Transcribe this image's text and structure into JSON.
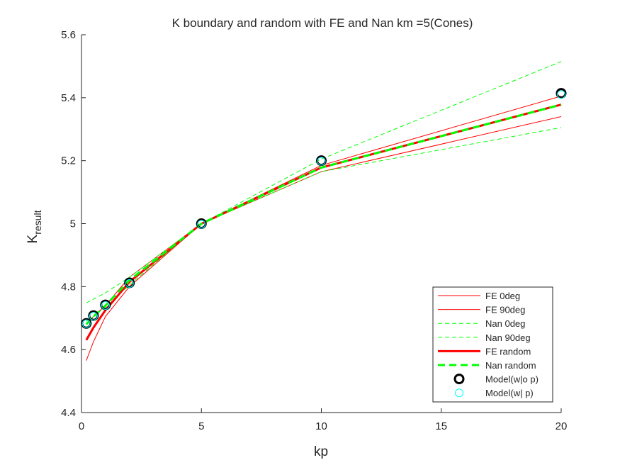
{
  "chart_data": {
    "type": "line",
    "title": "K boundary and random with FE and Nan km =5(Cones)",
    "xlabel": "kp",
    "ylabel_main": "K",
    "ylabel_sub": "result",
    "xlim": [
      0,
      20
    ],
    "ylim": [
      4.4,
      5.6
    ],
    "xticks": [
      0,
      5,
      10,
      15,
      20
    ],
    "yticks": [
      4.4,
      4.6,
      4.8,
      5,
      5.2,
      5.4,
      5.6
    ],
    "xtick_labels": [
      "0",
      "5",
      "10",
      "15",
      "20"
    ],
    "ytick_labels": [
      "4.4",
      "4.6",
      "4.8",
      "5",
      "5.2",
      "5.4",
      "5.6"
    ],
    "grid": false,
    "legend_position": "lower-right",
    "x": [
      0.2,
      0.5,
      1,
      2,
      5,
      10,
      20
    ],
    "series": [
      {
        "name": "FE 0deg",
        "kind": "line",
        "color": "#ff0000",
        "style": "solid",
        "width": 1,
        "values": [
          4.565,
          4.625,
          4.705,
          4.8,
          5.0,
          5.165,
          5.34
        ]
      },
      {
        "name": "FE 90deg",
        "kind": "line",
        "color": "#ff0000",
        "style": "solid",
        "width": 1,
        "values": [
          4.68,
          4.705,
          4.74,
          4.83,
          5.0,
          5.185,
          5.405
        ]
      },
      {
        "name": "Nan 0deg",
        "kind": "line",
        "color": "#00ff00",
        "style": "dashed",
        "width": 1,
        "values": [
          4.69,
          4.705,
          4.735,
          4.805,
          5.0,
          5.165,
          5.305
        ]
      },
      {
        "name": "Nan 90deg",
        "kind": "line",
        "color": "#00ff00",
        "style": "dashed",
        "width": 1,
        "values": [
          4.748,
          4.76,
          4.78,
          4.83,
          5.0,
          5.205,
          5.515
        ]
      },
      {
        "name": "FE random",
        "kind": "line",
        "color": "#ff0000",
        "style": "solid",
        "width": 3,
        "values": [
          4.63,
          4.67,
          4.725,
          4.815,
          5.0,
          5.178,
          5.378
        ]
      },
      {
        "name": "Nan random",
        "kind": "line",
        "color": "#00ff00",
        "style": "dashed",
        "width": 3,
        "values": [
          4.68,
          4.705,
          4.74,
          4.82,
          5.0,
          5.178,
          5.378
        ]
      },
      {
        "name": "Model(w|o p)",
        "kind": "marker",
        "color": "#000000",
        "style": "circle-thick",
        "values": [
          4.683,
          4.708,
          4.742,
          4.812,
          5.0,
          5.2,
          5.414
        ]
      },
      {
        "name": "Model(w| p)",
        "kind": "marker",
        "color": "#00ffff",
        "style": "circle-thin",
        "values": [
          4.682,
          4.706,
          4.74,
          4.81,
          4.998,
          5.198,
          5.41
        ]
      }
    ]
  }
}
